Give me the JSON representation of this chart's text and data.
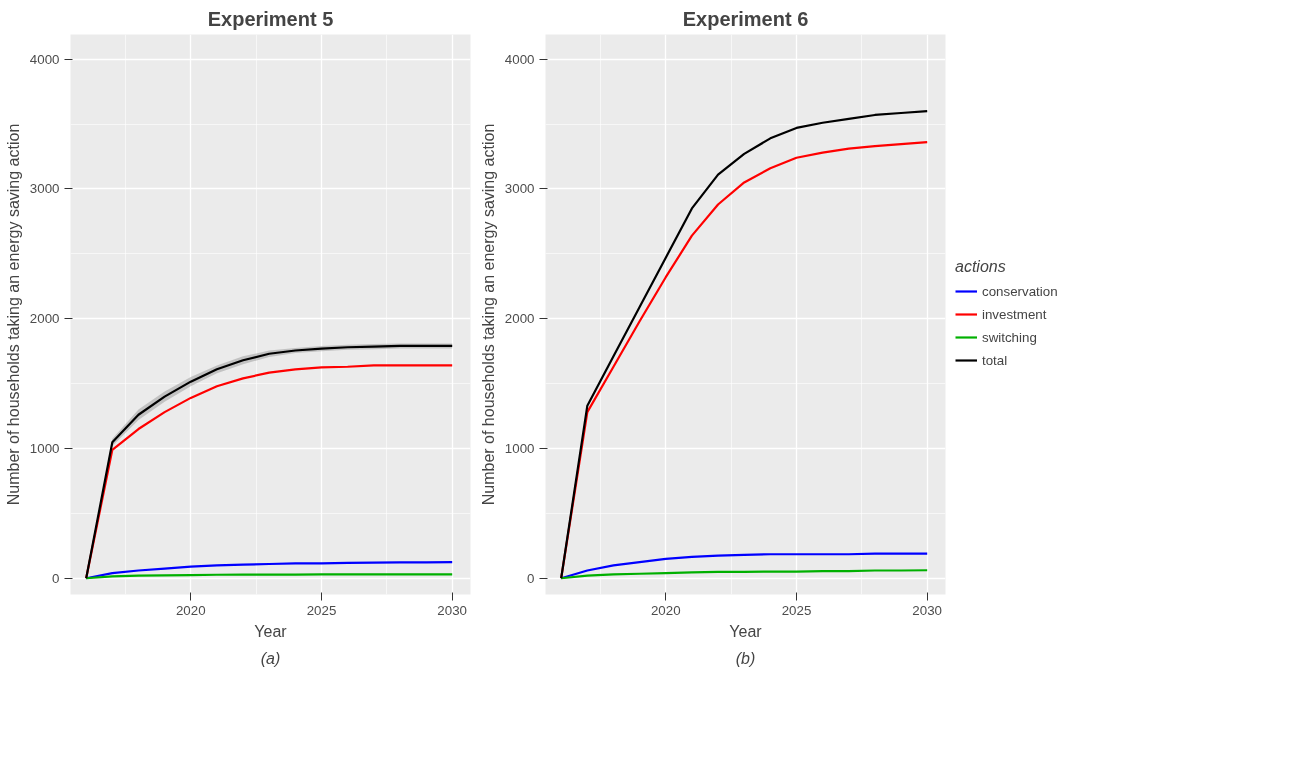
{
  "chart_data": [
    {
      "type": "line",
      "title": "Experiment 5",
      "xlabel": "Year",
      "ylabel": "Number of households taking an energy saving action",
      "annotations": [
        "(a)"
      ],
      "x": [
        2016,
        2017,
        2018,
        2019,
        2020,
        2021,
        2022,
        2023,
        2024,
        2025,
        2026,
        2027,
        2028,
        2029,
        2030
      ],
      "xlim": [
        2015.4,
        2030.7
      ],
      "xticks": [
        2020,
        2025,
        2030
      ],
      "ylim": [
        -125,
        4190
      ],
      "yticks": [
        0,
        1000,
        2000,
        3000,
        4000
      ],
      "grid": true,
      "series": [
        {
          "color": "#0000ff",
          "values": [
            0,
            40,
            60,
            75,
            90,
            100,
            105,
            110,
            115,
            115,
            118,
            120,
            122,
            122,
            125
          ]
        },
        {
          "color": "#ff0000",
          "values": [
            0,
            990,
            1150,
            1280,
            1390,
            1480,
            1540,
            1585,
            1610,
            1625,
            1630,
            1640,
            1640,
            1640,
            1640
          ]
        },
        {
          "color": "#00b000",
          "values": [
            0,
            15,
            20,
            22,
            25,
            27,
            28,
            28,
            28,
            30,
            30,
            30,
            30,
            30,
            30
          ]
        },
        {
          "color": "#000000",
          "values": [
            0,
            1048,
            1260,
            1400,
            1515,
            1610,
            1680,
            1730,
            1755,
            1770,
            1780,
            1785,
            1790,
            1790,
            1790
          ],
          "lower": [
            0,
            1020,
            1220,
            1360,
            1480,
            1580,
            1650,
            1705,
            1735,
            1750,
            1760,
            1765,
            1770,
            1770,
            1770
          ],
          "upper": [
            0,
            1075,
            1300,
            1440,
            1550,
            1640,
            1710,
            1755,
            1775,
            1790,
            1800,
            1805,
            1810,
            1810,
            1810
          ]
        }
      ]
    },
    {
      "type": "line",
      "title": "Experiment 6",
      "xlabel": "Year",
      "ylabel": "Number of households taking an energy saving action",
      "annotations": [
        "(b)"
      ],
      "x": [
        2016,
        2017,
        2018,
        2019,
        2020,
        2021,
        2022,
        2023,
        2024,
        2025,
        2026,
        2027,
        2028,
        2029,
        2030
      ],
      "xlim": [
        2015.4,
        2030.7
      ],
      "xticks": [
        2020,
        2025,
        2030
      ],
      "ylim": [
        -125,
        4190
      ],
      "yticks": [
        0,
        1000,
        2000,
        3000,
        4000
      ],
      "grid": true,
      "legend": "right",
      "legend_title": "actions",
      "series": [
        {
          "name": "conservation",
          "color": "#0000ff",
          "values": [
            0,
            60,
            100,
            125,
            150,
            165,
            175,
            180,
            185,
            185,
            185,
            185,
            190,
            190,
            190
          ]
        },
        {
          "name": "investment",
          "color": "#ff0000",
          "values": [
            0,
            1280,
            1630,
            1980,
            2320,
            2640,
            2880,
            3050,
            3160,
            3240,
            3280,
            3310,
            3330,
            3345,
            3360
          ]
        },
        {
          "name": "switching",
          "color": "#00b000",
          "values": [
            0,
            20,
            30,
            35,
            40,
            45,
            50,
            50,
            52,
            52,
            55,
            55,
            60,
            60,
            62
          ]
        },
        {
          "name": "total",
          "color": "#000000",
          "values": [
            0,
            1330,
            1710,
            2090,
            2470,
            2850,
            3110,
            3270,
            3390,
            3470,
            3510,
            3540,
            3570,
            3585,
            3600
          ]
        }
      ]
    }
  ]
}
